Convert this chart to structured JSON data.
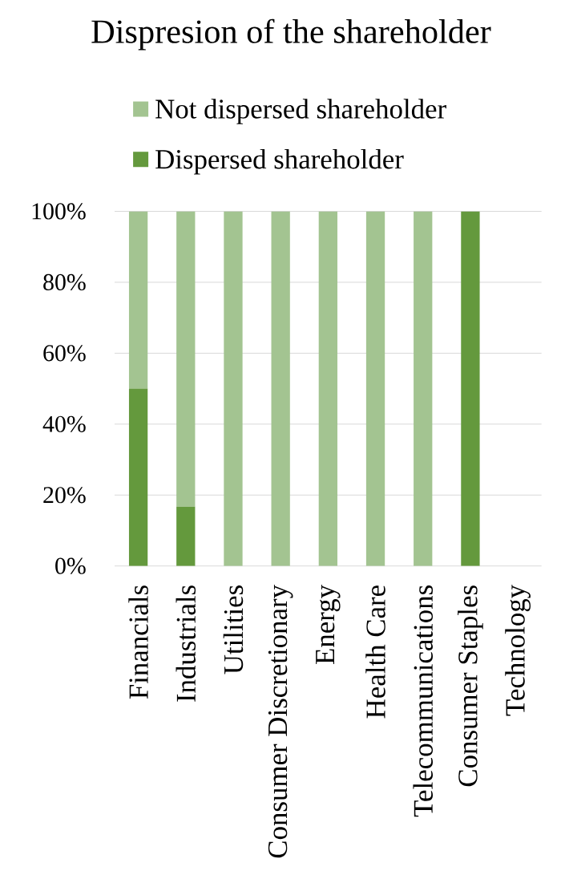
{
  "chart_data": {
    "type": "bar",
    "title": "Dispresion of the shareholder",
    "categories": [
      "Financials",
      "Industrials",
      "Utilities",
      "Consumer Discretionary",
      "Energy",
      "Health Care",
      "Telecommunications",
      "Consumer Staples",
      "Technology"
    ],
    "series": [
      {
        "name": "Dispersed shareholder",
        "color": "#64993d",
        "values": [
          50,
          16.7,
          0,
          0,
          0,
          0,
          0,
          100,
          null
        ]
      },
      {
        "name": "Not dispersed shareholder",
        "color": "#a3c491",
        "values": [
          50,
          83.3,
          100,
          100,
          100,
          100,
          100,
          0,
          null
        ]
      }
    ],
    "stacked": true,
    "ylim": [
      0,
      100
    ],
    "yticks": [
      {
        "value": 0,
        "label": "0%"
      },
      {
        "value": 20,
        "label": "20%"
      },
      {
        "value": 40,
        "label": "40%"
      },
      {
        "value": 60,
        "label": "60%"
      },
      {
        "value": 80,
        "label": "80%"
      },
      {
        "value": 100,
        "label": "100%"
      }
    ],
    "grid": "y",
    "legend": "top"
  }
}
